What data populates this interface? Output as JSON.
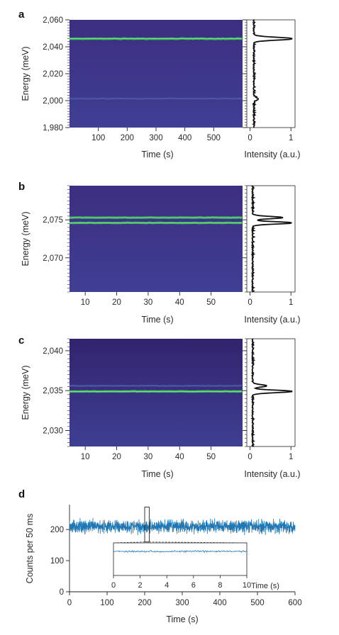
{
  "panels": [
    {
      "letter": "a",
      "ylabel": "Energy (meV)",
      "xlabel": "Time (s)",
      "side_xlabel": "Intensity (a.u.)"
    },
    {
      "letter": "b",
      "ylabel": "Energy (meV)",
      "xlabel": "Time (s)",
      "side_xlabel": "Intensity (a.u.)"
    },
    {
      "letter": "c",
      "ylabel": "Energy (meV)",
      "xlabel": "Time (s)",
      "side_xlabel": "Intensity (a.u.)"
    },
    {
      "letter": "d",
      "ylabel": "Counts per 50 ms",
      "xlabel": "Time (s)",
      "inset_xlabel": "Time (s)"
    }
  ],
  "colors": {
    "heatmap_bg": "#3b2a7e",
    "heatmap_line": "#37c46a",
    "trace": "#1f77b4",
    "axis": "#222222"
  },
  "chart_data": [
    {
      "type": "heatmap",
      "panel": "a",
      "xlabel": "Time (s)",
      "ylabel": "Energy (meV)",
      "xlim": [
        0,
        600
      ],
      "ylim": [
        1980,
        2060
      ],
      "xticks": [
        100,
        200,
        300,
        400,
        500
      ],
      "yticks": [
        1980,
        2000,
        2020,
        2040,
        2060
      ],
      "ytick_labels": [
        "1,980",
        "2,000",
        "2,020",
        "2,040",
        "2,060"
      ],
      "emission_lines": [
        {
          "energy": 2046,
          "strength": 1.0
        },
        {
          "energy": 2001.5,
          "strength": 0.12
        }
      ],
      "spectrum": {
        "xlabel": "Intensity (a.u.)",
        "xticks": [
          0,
          1
        ],
        "xlim": [
          -0.08,
          1.1
        ],
        "peaks": [
          {
            "energy": 2046,
            "intensity": 1.0,
            "width": 1.0
          },
          {
            "energy": 2001.5,
            "intensity": 0.1,
            "width": 1.0
          }
        ],
        "baseline": 0.08
      }
    },
    {
      "type": "heatmap",
      "panel": "b",
      "xlabel": "Time (s)",
      "ylabel": "Energy (meV)",
      "xlim": [
        5,
        60
      ],
      "ylim": [
        2065.5,
        2079.5
      ],
      "xticks": [
        10,
        20,
        30,
        40,
        50
      ],
      "yticks": [
        2070,
        2075
      ],
      "ytick_labels": [
        "2,070",
        "2,075"
      ],
      "emission_lines": [
        {
          "energy": 2075.3,
          "strength": 0.85
        },
        {
          "energy": 2074.6,
          "strength": 0.9
        }
      ],
      "spectrum": {
        "xlabel": "Intensity (a.u.)",
        "xticks": [
          0,
          1
        ],
        "xlim": [
          -0.08,
          1.1
        ],
        "peaks": [
          {
            "energy": 2075.3,
            "intensity": 0.75,
            "width": 0.15
          },
          {
            "energy": 2074.6,
            "intensity": 1.0,
            "width": 0.15
          }
        ],
        "baseline": 0.05
      }
    },
    {
      "type": "heatmap",
      "panel": "c",
      "xlabel": "Time (s)",
      "ylabel": "Energy (meV)",
      "xlim": [
        5,
        60
      ],
      "ylim": [
        2028,
        2041.5
      ],
      "xticks": [
        10,
        20,
        30,
        40,
        50
      ],
      "yticks": [
        2030,
        2035,
        2040
      ],
      "ytick_labels": [
        "2,030",
        "2,035",
        "2,040"
      ],
      "emission_lines": [
        {
          "energy": 2035.6,
          "strength": 0.4
        },
        {
          "energy": 2034.9,
          "strength": 1.0
        }
      ],
      "spectrum": {
        "xlabel": "Intensity (a.u.)",
        "xticks": [
          0,
          1
        ],
        "xlim": [
          -0.08,
          1.1
        ],
        "peaks": [
          {
            "energy": 2035.6,
            "intensity": 0.35,
            "width": 0.15
          },
          {
            "energy": 2034.9,
            "intensity": 1.0,
            "width": 0.15
          }
        ],
        "baseline": 0.05
      }
    },
    {
      "type": "line",
      "panel": "d",
      "xlabel": "Time (s)",
      "ylabel": "Counts per 50 ms",
      "xlim": [
        0,
        600
      ],
      "ylim": [
        0,
        280
      ],
      "xticks": [
        0,
        100,
        200,
        300,
        400,
        500,
        600
      ],
      "yticks": [
        0,
        100,
        200
      ],
      "mean": 210,
      "spread": 30,
      "highlight_window": [
        200,
        212
      ],
      "inset": {
        "xlim": [
          0,
          10
        ],
        "xticks": [
          0,
          2,
          4,
          6,
          8,
          10
        ],
        "xlabel": "Time (s)",
        "mean": 210,
        "spread": 15
      }
    }
  ]
}
